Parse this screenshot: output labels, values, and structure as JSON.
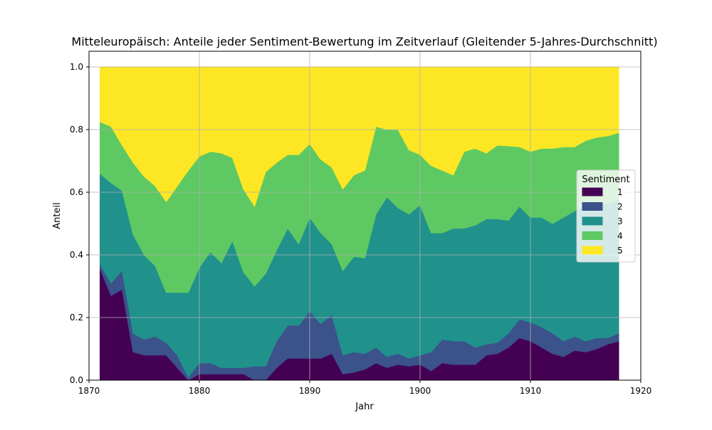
{
  "chart_data": {
    "type": "area",
    "stacked": true,
    "title": "Mitteleuropäisch: Anteile jeder Sentiment-Bewertung im Zeitverlauf (Gleitender 5-Jahres-Durchschnitt)",
    "xlabel": "Jahr",
    "ylabel": "Anteil",
    "xlim": [
      1870,
      1920
    ],
    "ylim": [
      0,
      1.0
    ],
    "xticks": [
      1870,
      1880,
      1890,
      1900,
      1910,
      1920
    ],
    "yticks": [
      "0.0",
      "0.2",
      "0.4",
      "0.6",
      "0.8",
      "1.0"
    ],
    "grid": true,
    "legend": {
      "title": "Sentiment",
      "placement": "center-right"
    },
    "x": [
      1871,
      1872,
      1873,
      1874,
      1875,
      1876,
      1877,
      1878,
      1879,
      1880,
      1881,
      1882,
      1883,
      1884,
      1885,
      1886,
      1887,
      1888,
      1889,
      1890,
      1891,
      1892,
      1893,
      1894,
      1895,
      1896,
      1897,
      1898,
      1899,
      1900,
      1901,
      1902,
      1903,
      1904,
      1905,
      1906,
      1907,
      1908,
      1909,
      1910,
      1911,
      1912,
      1913,
      1914,
      1915,
      1916,
      1917,
      1918
    ],
    "series": [
      {
        "name": "1",
        "color": "#440154",
        "values": [
          0.355,
          0.27,
          0.29,
          0.09,
          0.08,
          0.08,
          0.08,
          0.04,
          0.0,
          0.02,
          0.02,
          0.02,
          0.02,
          0.02,
          0.0,
          0.0,
          0.04,
          0.07,
          0.07,
          0.07,
          0.07,
          0.085,
          0.02,
          0.025,
          0.035,
          0.055,
          0.04,
          0.05,
          0.045,
          0.05,
          0.03,
          0.055,
          0.05,
          0.05,
          0.05,
          0.08,
          0.085,
          0.105,
          0.135,
          0.125,
          0.105,
          0.085,
          0.075,
          0.095,
          0.09,
          0.1,
          0.115,
          0.125
        ]
      },
      {
        "name": "2",
        "color": "#3b528b",
        "values": [
          0.015,
          0.04,
          0.06,
          0.06,
          0.05,
          0.06,
          0.04,
          0.04,
          0.01,
          0.035,
          0.035,
          0.02,
          0.02,
          0.02,
          0.045,
          0.045,
          0.085,
          0.105,
          0.105,
          0.15,
          0.11,
          0.125,
          0.06,
          0.065,
          0.05,
          0.05,
          0.035,
          0.035,
          0.025,
          0.03,
          0.06,
          0.075,
          0.075,
          0.075,
          0.055,
          0.035,
          0.035,
          0.045,
          0.06,
          0.06,
          0.065,
          0.065,
          0.05,
          0.045,
          0.035,
          0.035,
          0.02,
          0.025
        ]
      },
      {
        "name": "3",
        "color": "#21918c",
        "values": [
          0.29,
          0.32,
          0.255,
          0.315,
          0.27,
          0.225,
          0.16,
          0.2,
          0.27,
          0.305,
          0.355,
          0.335,
          0.405,
          0.305,
          0.255,
          0.295,
          0.29,
          0.31,
          0.26,
          0.3,
          0.29,
          0.225,
          0.27,
          0.305,
          0.305,
          0.425,
          0.51,
          0.465,
          0.46,
          0.48,
          0.38,
          0.34,
          0.36,
          0.36,
          0.39,
          0.4,
          0.395,
          0.36,
          0.36,
          0.335,
          0.35,
          0.35,
          0.395,
          0.4,
          0.435,
          0.425,
          0.43,
          0.425
        ]
      },
      {
        "name": "4",
        "color": "#5ec962",
        "values": [
          0.165,
          0.18,
          0.145,
          0.23,
          0.25,
          0.255,
          0.29,
          0.34,
          0.39,
          0.355,
          0.32,
          0.35,
          0.265,
          0.265,
          0.255,
          0.325,
          0.28,
          0.235,
          0.285,
          0.235,
          0.235,
          0.245,
          0.26,
          0.26,
          0.28,
          0.28,
          0.215,
          0.25,
          0.205,
          0.16,
          0.215,
          0.2,
          0.17,
          0.245,
          0.245,
          0.21,
          0.235,
          0.238,
          0.19,
          0.21,
          0.22,
          0.24,
          0.225,
          0.205,
          0.205,
          0.215,
          0.215,
          0.215
        ]
      },
      {
        "name": "5",
        "color": "#fde725",
        "values": [
          0.175,
          0.19,
          0.25,
          0.305,
          0.35,
          0.38,
          0.43,
          0.38,
          0.33,
          0.285,
          0.27,
          0.275,
          0.29,
          0.39,
          0.445,
          0.335,
          0.305,
          0.28,
          0.28,
          0.245,
          0.295,
          0.32,
          0.39,
          0.345,
          0.33,
          0.19,
          0.2,
          0.2,
          0.265,
          0.28,
          0.315,
          0.33,
          0.345,
          0.27,
          0.26,
          0.275,
          0.25,
          0.252,
          0.255,
          0.27,
          0.26,
          0.26,
          0.255,
          0.255,
          0.235,
          0.225,
          0.22,
          0.21
        ]
      }
    ]
  }
}
